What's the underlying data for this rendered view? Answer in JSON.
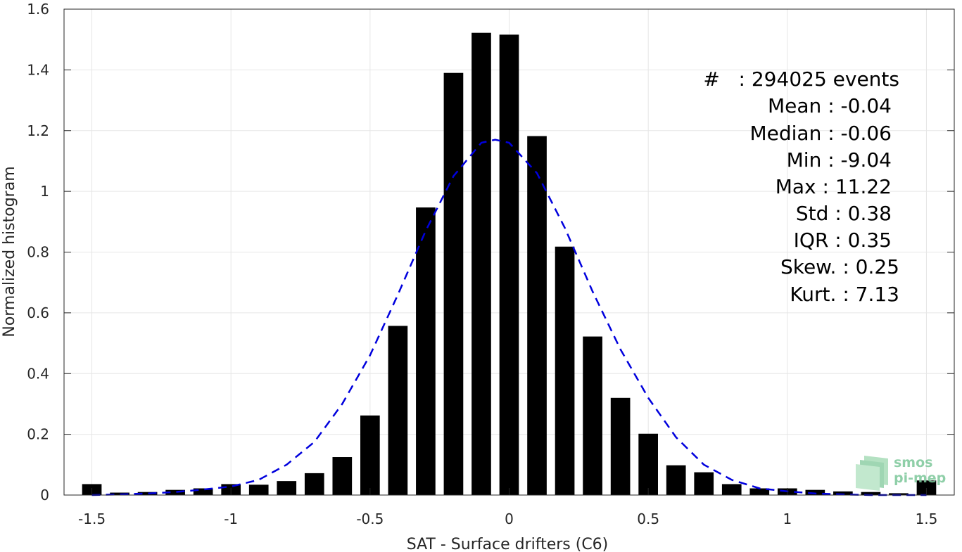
{
  "chart_data": {
    "type": "bar",
    "title": "",
    "xlabel": "SAT - Surface drifters (C6)",
    "ylabel": "Normalized histogram",
    "xlim": [
      -1.6,
      1.6
    ],
    "ylim": [
      0,
      1.6
    ],
    "grid": true,
    "x_ticks": [
      "-1.5",
      "-1",
      "-0.5",
      "0",
      "0.5",
      "1",
      "1.5"
    ],
    "x_tick_values": [
      -1.5,
      -1,
      -0.5,
      0,
      0.5,
      1,
      1.5
    ],
    "y_ticks": [
      "0",
      "0.2",
      "0.4",
      "0.6",
      "0.8",
      "1",
      "1.2",
      "1.4",
      "1.6"
    ],
    "y_tick_values": [
      0,
      0.2,
      0.4,
      0.6,
      0.8,
      1,
      1.2,
      1.4,
      1.6
    ],
    "bar_width": 0.07,
    "bar_color": "#000000",
    "bars": {
      "x": [
        -1.5,
        -1.4,
        -1.3,
        -1.2,
        -1.1,
        -1.0,
        -0.9,
        -0.8,
        -0.7,
        -0.6,
        -0.5,
        -0.4,
        -0.3,
        -0.2,
        -0.1,
        0.0,
        0.1,
        0.2,
        0.3,
        0.4,
        0.5,
        0.6,
        0.7,
        0.8,
        0.9,
        1.0,
        1.1,
        1.2,
        1.3,
        1.4,
        1.5
      ],
      "values": [
        0.036,
        0.008,
        0.01,
        0.017,
        0.022,
        0.036,
        0.034,
        0.046,
        0.072,
        0.125,
        0.262,
        0.557,
        0.947,
        1.39,
        1.522,
        1.516,
        1.182,
        0.818,
        0.522,
        0.32,
        0.202,
        0.098,
        0.075,
        0.036,
        0.022,
        0.022,
        0.017,
        0.012,
        0.01,
        0.006,
        0.048
      ]
    },
    "fit_curve": {
      "style": "dashed",
      "color": "#0000dd",
      "x": [
        -1.5,
        -1.4,
        -1.3,
        -1.2,
        -1.1,
        -1.0,
        -0.9,
        -0.8,
        -0.7,
        -0.6,
        -0.5,
        -0.4,
        -0.3,
        -0.2,
        -0.1,
        -0.05,
        0.0,
        0.1,
        0.2,
        0.3,
        0.4,
        0.5,
        0.6,
        0.7,
        0.8,
        0.9,
        1.0,
        1.1,
        1.2,
        1.3,
        1.4,
        1.5
      ],
      "y": [
        0.0,
        0.002,
        0.005,
        0.01,
        0.018,
        0.028,
        0.05,
        0.1,
        0.175,
        0.3,
        0.46,
        0.66,
        0.87,
        1.05,
        1.16,
        1.17,
        1.16,
        1.06,
        0.88,
        0.67,
        0.48,
        0.32,
        0.19,
        0.1,
        0.05,
        0.022,
        0.012,
        0.005,
        0.002,
        0.0,
        0.0,
        0.0
      ]
    }
  },
  "stats": {
    "events": "#   : 294025 events",
    "mean": "Mean : -0.04",
    "median": "Median : -0.06",
    "min": "Min : -9.04",
    "max": "Max : 11.22",
    "std": "Std : 0.38",
    "iqr": "IQR : 0.35",
    "skew": "Skew. : 0.25",
    "kurt": "Kurt. : 7.13"
  },
  "logo": {
    "line1": "smos",
    "line2": "pi-mep"
  }
}
